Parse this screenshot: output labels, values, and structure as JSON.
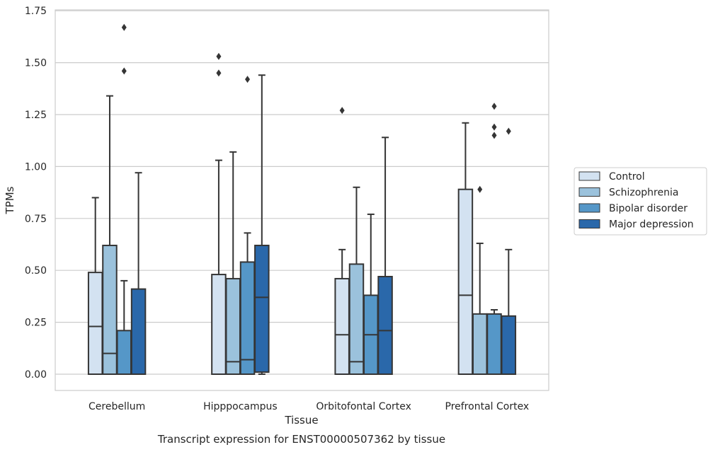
{
  "chart_data": {
    "type": "box",
    "title": "Transcript expression for ENST00000507362 by tissue",
    "xlabel": "Tissue",
    "ylabel": "TPMs",
    "ylim": [
      -0.08,
      1.76
    ],
    "yticks": [
      "0.00",
      "0.25",
      "0.50",
      "0.75",
      "1.00",
      "1.25",
      "1.50",
      "1.75"
    ],
    "grid": true,
    "legend_position": "right",
    "categories": [
      "Cerebellum",
      "Hipppocampus",
      "Orbitofontal Cortex",
      "Prefrontal Cortex"
    ],
    "series": [
      {
        "name": "Control",
        "color": "#d3e2f1",
        "boxes": [
          {
            "min": 0.0,
            "q1": 0.0,
            "median": 0.23,
            "q3": 0.49,
            "max": 0.85,
            "outliers": []
          },
          {
            "min": 0.0,
            "q1": 0.0,
            "median": 0.0,
            "q3": 0.48,
            "max": 1.03,
            "outliers": [
              1.45,
              1.53
            ]
          },
          {
            "min": 0.0,
            "q1": 0.0,
            "median": 0.19,
            "q3": 0.46,
            "max": 0.6,
            "outliers": [
              1.27
            ]
          },
          {
            "min": 0.0,
            "q1": 0.0,
            "median": 0.38,
            "q3": 0.89,
            "max": 1.21,
            "outliers": []
          }
        ]
      },
      {
        "name": "Schizophrenia",
        "color": "#9bc2dc",
        "boxes": [
          {
            "min": 0.0,
            "q1": 0.0,
            "median": 0.1,
            "q3": 0.62,
            "max": 1.34,
            "outliers": []
          },
          {
            "min": 0.0,
            "q1": 0.0,
            "median": 0.06,
            "q3": 0.46,
            "max": 1.07,
            "outliers": []
          },
          {
            "min": 0.0,
            "q1": 0.0,
            "median": 0.06,
            "q3": 0.53,
            "max": 0.9,
            "outliers": []
          },
          {
            "min": 0.0,
            "q1": 0.0,
            "median": 0.0,
            "q3": 0.29,
            "max": 0.63,
            "outliers": [
              0.89
            ]
          }
        ]
      },
      {
        "name": "Bipolar disorder",
        "color": "#5597c8",
        "boxes": [
          {
            "min": 0.0,
            "q1": 0.0,
            "median": 0.0,
            "q3": 0.21,
            "max": 0.45,
            "outliers": [
              1.46,
              1.67
            ]
          },
          {
            "min": 0.0,
            "q1": 0.0,
            "median": 0.07,
            "q3": 0.54,
            "max": 0.68,
            "outliers": [
              1.42
            ]
          },
          {
            "min": 0.0,
            "q1": 0.0,
            "median": 0.19,
            "q3": 0.38,
            "max": 0.77,
            "outliers": []
          },
          {
            "min": 0.0,
            "q1": 0.0,
            "median": 0.0,
            "q3": 0.29,
            "max": 0.31,
            "outliers": [
              1.15,
              1.19,
              1.29
            ]
          }
        ]
      },
      {
        "name": "Major depression",
        "color": "#2a68aa",
        "boxes": [
          {
            "min": 0.0,
            "q1": 0.0,
            "median": 0.0,
            "q3": 0.41,
            "max": 0.97,
            "outliers": []
          },
          {
            "min": 0.0,
            "q1": 0.01,
            "median": 0.37,
            "q3": 0.62,
            "max": 1.44,
            "outliers": []
          },
          {
            "min": 0.0,
            "q1": 0.0,
            "median": 0.21,
            "q3": 0.47,
            "max": 1.14,
            "outliers": []
          },
          {
            "min": 0.0,
            "q1": 0.0,
            "median": 0.0,
            "q3": 0.28,
            "max": 0.6,
            "outliers": [
              1.17
            ]
          }
        ]
      }
    ]
  }
}
